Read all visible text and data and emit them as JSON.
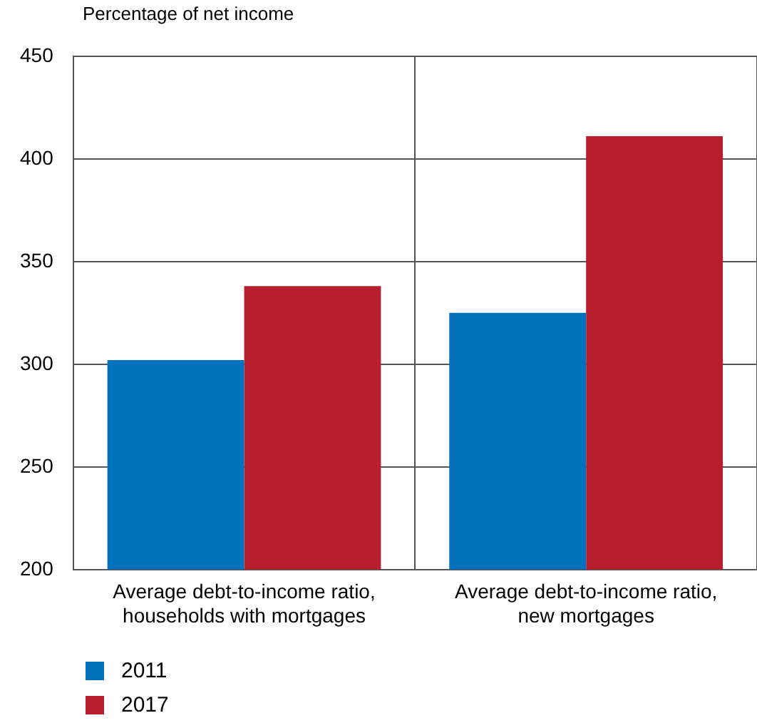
{
  "chart_data": {
    "type": "bar",
    "ylabel": "Percentage of net income",
    "categories": [
      "Average debt-to-income ratio, households with mortgages",
      "Average debt-to-income ratio, new mortgages"
    ],
    "series": [
      {
        "name": "2011",
        "color": "#0071bc",
        "values": [
          302,
          325
        ]
      },
      {
        "name": "2017",
        "color": "#b81f2d",
        "values": [
          338,
          411
        ]
      }
    ],
    "ylim": [
      200,
      450
    ],
    "yticks": [
      200,
      250,
      300,
      350,
      400,
      450
    ],
    "grid": true,
    "legend": "bottom left"
  }
}
